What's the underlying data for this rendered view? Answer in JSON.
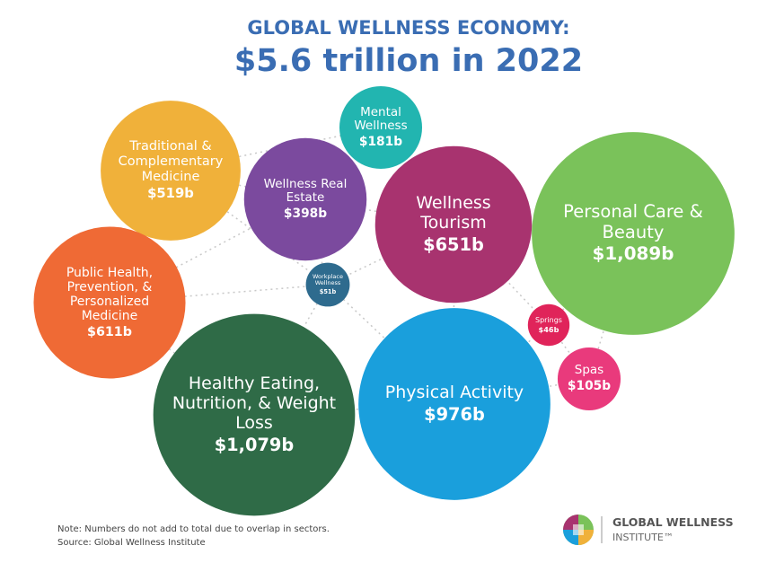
{
  "chart_data": {
    "type": "bubble",
    "title": "GLOBAL WELLNESS ECONOMY:",
    "subtitle": "$5.6 trillion in 2022",
    "categories": [
      "Traditional & Complementary Medicine",
      "Wellness Real Estate",
      "Mental Wellness",
      "Wellness Tourism",
      "Personal Care & Beauty",
      "Public Health, Prevention, & Personalized Medicine",
      "Workplace Wellness",
      "Healthy Eating, Nutrition, & Weight Loss",
      "Physical Activity",
      "Springs",
      "Spas"
    ],
    "values": [
      519,
      398,
      181,
      651,
      1089,
      611,
      51,
      1079,
      976,
      46,
      105
    ],
    "value_labels": [
      "$519b",
      "$398b",
      "$181b",
      "$651b",
      "$1,089b",
      "$611b",
      "$51b",
      "$1,079b",
      "$976b",
      "$46b",
      "$105b"
    ],
    "colors": [
      "#f0b13a",
      "#7b4a9e",
      "#22b5b0",
      "#a8336f",
      "#7ac25a",
      "#ef6a35",
      "#2e6b8e",
      "#2f6b47",
      "#1a9fdc",
      "#e0245a",
      "#e93a7c"
    ],
    "note": "Note: Numbers do not add to total due to overlap in sectors.",
    "source": "Source: Global Wellness Institute"
  },
  "logo": {
    "name": "GLOBAL WELLNESS",
    "sub": "INSTITUTE™"
  }
}
